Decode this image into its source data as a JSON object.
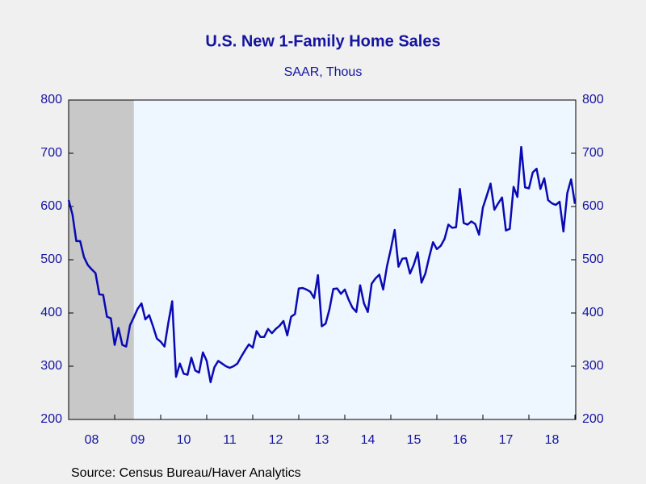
{
  "chart_data": {
    "type": "line",
    "title": "U.S. New 1-Family Home Sales",
    "subtitle": "SAAR, Thous",
    "source": "Source:  Census Bureau/Haver Analytics",
    "categories": [
      null,
      null,
      null,
      null,
      null,
      null,
      "08",
      null,
      null,
      null,
      null,
      null,
      null,
      null,
      null,
      null,
      null,
      null,
      "09",
      null,
      null,
      null,
      null,
      null,
      null,
      null,
      null,
      null,
      null,
      null,
      "10",
      null,
      null,
      null,
      null,
      null,
      null,
      null,
      null,
      null,
      null,
      null,
      "11",
      null,
      null,
      null,
      null,
      null,
      null,
      null,
      null,
      null,
      null,
      null,
      "12",
      null,
      null,
      null,
      null,
      null,
      null,
      null,
      null,
      null,
      null,
      null,
      "13",
      null,
      null,
      null,
      null,
      null,
      null,
      null,
      null,
      null,
      null,
      null,
      "14",
      null,
      null,
      null,
      null,
      null,
      null,
      null,
      null,
      null,
      null,
      null,
      "15",
      null,
      null,
      null,
      null,
      null,
      null,
      null,
      null,
      null,
      null,
      null,
      "16",
      null,
      null,
      null,
      null,
      null,
      null,
      null,
      null,
      null,
      null,
      null,
      "17",
      null,
      null,
      null,
      null,
      null,
      null,
      null,
      null,
      null,
      null,
      null,
      "18",
      null,
      null,
      null,
      null,
      null,
      null
    ],
    "series": [
      {
        "name": "New 1-Family Home Sales",
        "color": "#0a0ab4",
        "values": [
          612,
          585,
          535,
          535,
          505,
          490,
          482,
          475,
          435,
          434,
          393,
          390,
          340,
          372,
          340,
          337,
          377,
          392,
          408,
          418,
          388,
          396,
          375,
          352,
          346,
          337,
          382,
          422,
          280,
          305,
          286,
          284,
          316,
          292,
          288,
          326,
          310,
          270,
          298,
          310,
          305,
          300,
          297,
          300,
          305,
          318,
          330,
          341,
          335,
          366,
          355,
          355,
          370,
          362,
          370,
          376,
          385,
          358,
          393,
          398,
          446,
          447,
          444,
          440,
          428,
          471,
          375,
          380,
          407,
          445,
          446,
          436,
          444,
          425,
          410,
          402,
          452,
          418,
          402,
          455,
          465,
          472,
          444,
          488,
          520,
          556,
          487,
          502,
          503,
          474,
          491,
          514,
          457,
          474,
          505,
          533,
          520,
          526,
          539,
          566,
          560,
          561,
          633,
          569,
          566,
          572,
          567,
          547,
          598,
          620,
          643,
          594,
          606,
          617,
          555,
          558,
          637,
          618,
          712,
          636,
          634,
          664,
          671,
          633,
          653,
          612,
          606,
          603,
          609,
          553,
          625,
          651,
          605
        ]
      }
    ],
    "ylim": [
      200,
      800
    ],
    "yticks": [
      200,
      300,
      400,
      500,
      600,
      700,
      800
    ],
    "y2lim": [
      200,
      800
    ],
    "y2ticks": [
      200,
      300,
      400,
      500,
      600,
      700,
      800
    ],
    "grid": false
  }
}
